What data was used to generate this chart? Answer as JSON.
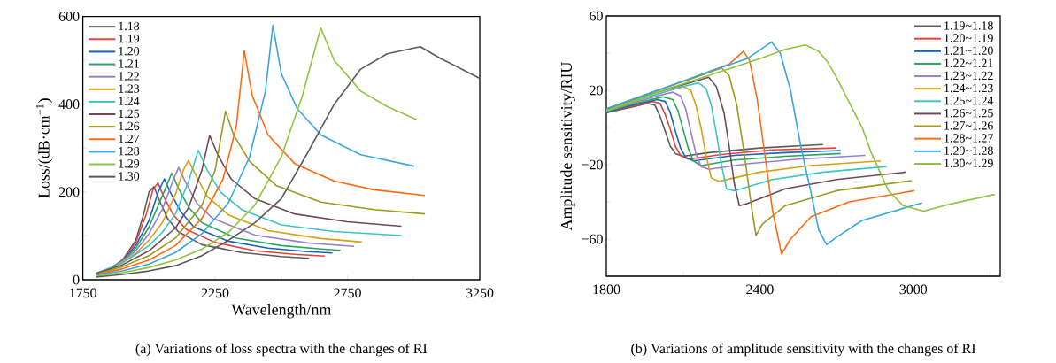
{
  "chart_data": [
    {
      "type": "line",
      "xlabel": "Wavelength/nm",
      "ylabel": "Loss/(dB·cm$^{−1}$)",
      "legend": "top left",
      "xlim": [
        1750,
        3250
      ],
      "xticks": [
        1750,
        {
          "value": 2000,
          "label": null
        },
        2250,
        {
          "value": 2500,
          "label": null
        },
        2750,
        {
          "value": 3000,
          "label": null
        },
        3250
      ],
      "ylim": [
        0,
        600
      ],
      "yticks": [
        0,
        {
          "value": 100,
          "label": null
        },
        200,
        {
          "value": 300,
          "label": null
        },
        400,
        {
          "value": 500,
          "label": null
        },
        600
      ],
      "annotations": [
        "(a) Variations of loss spectra with the changes of RI"
      ],
      "series": [
        {
          "name": "1.18",
          "color": "#5a5a5a",
          "x": [
            1800,
            1850,
            1900,
            1950,
            1980,
            2000,
            2019,
            2040,
            2070,
            2110,
            2200,
            2350,
            2500,
            2605
          ],
          "values": [
            10,
            22,
            45,
            90,
            150,
            200,
            212,
            180,
            140,
            110,
            80,
            62,
            53,
            49
          ]
        },
        {
          "name": "1.19",
          "color": "#e8413a",
          "x": [
            1800,
            1850,
            1900,
            1950,
            1990,
            2015,
            2034,
            2055,
            2090,
            2140,
            2250,
            2400,
            2550,
            2664
          ],
          "values": [
            11,
            23,
            45,
            85,
            150,
            205,
            221,
            190,
            150,
            115,
            85,
            66,
            58,
            54
          ]
        },
        {
          "name": "1.20",
          "color": "#1466b8",
          "x": [
            1800,
            1850,
            1900,
            1950,
            2000,
            2035,
            2058,
            2080,
            2120,
            2170,
            2300,
            2450,
            2600,
            2693
          ],
          "values": [
            12,
            24,
            44,
            78,
            135,
            200,
            230,
            200,
            155,
            120,
            88,
            72,
            64,
            61
          ]
        },
        {
          "name": "1.21",
          "color": "#2aa660",
          "x": [
            1800,
            1850,
            1900,
            1950,
            2000,
            2060,
            2086,
            2110,
            2150,
            2200,
            2330,
            2500,
            2650,
            2724
          ],
          "values": [
            13,
            24,
            43,
            72,
            120,
            205,
            243,
            210,
            165,
            130,
            95,
            78,
            70,
            67
          ]
        },
        {
          "name": "1.22",
          "color": "#9b7ecb",
          "x": [
            1800,
            1850,
            1900,
            1950,
            2000,
            2050,
            2090,
            2112,
            2140,
            2180,
            2240,
            2400,
            2600,
            2775
          ],
          "values": [
            14,
            25,
            42,
            66,
            105,
            160,
            225,
            256,
            220,
            175,
            140,
            102,
            84,
            76
          ]
        },
        {
          "name": "1.23",
          "color": "#d9a015",
          "x": [
            1800,
            1850,
            1900,
            1950,
            2000,
            2050,
            2100,
            2130,
            2149,
            2180,
            2220,
            2300,
            2450,
            2650,
            2805
          ],
          "values": [
            14,
            24,
            40,
            60,
            90,
            130,
            195,
            250,
            272,
            235,
            190,
            148,
            112,
            94,
            86
          ]
        },
        {
          "name": "1.24",
          "color": "#3cc4c8",
          "x": [
            1800,
            1900,
            2000,
            2050,
            2100,
            2150,
            2186,
            2220,
            2270,
            2350,
            2500,
            2700,
            2954
          ],
          "values": [
            15,
            38,
            78,
            108,
            150,
            225,
            295,
            250,
            200,
            160,
            125,
            110,
            101
          ]
        },
        {
          "name": "1.25",
          "color": "#6e4a55",
          "x": [
            1800,
            1900,
            2000,
            2100,
            2150,
            2200,
            2229,
            2260,
            2310,
            2400,
            2550,
            2750,
            2954
          ],
          "values": [
            14,
            34,
            66,
            118,
            165,
            250,
            329,
            285,
            230,
            185,
            150,
            132,
            122
          ]
        },
        {
          "name": "1.26",
          "color": "#9a9a22",
          "x": [
            1800,
            1900,
            2000,
            2100,
            2200,
            2250,
            2289,
            2320,
            2380,
            2480,
            2650,
            2850,
            3043
          ],
          "values": [
            12,
            30,
            55,
            95,
            170,
            250,
            384,
            330,
            270,
            215,
            177,
            160,
            150
          ]
        },
        {
          "name": "1.27",
          "color": "#ff6a10",
          "x": [
            1800,
            1900,
            2000,
            2100,
            2200,
            2280,
            2330,
            2360,
            2390,
            2450,
            2550,
            2700,
            2850,
            3043
          ],
          "values": [
            11,
            25,
            45,
            78,
            140,
            230,
            350,
            522,
            420,
            330,
            265,
            225,
            205,
            192
          ]
        },
        {
          "name": "1.28",
          "color": "#3ba5e0",
          "x": [
            1800,
            1900,
            2000,
            2100,
            2200,
            2300,
            2380,
            2440,
            2468,
            2500,
            2560,
            2650,
            2800,
            3002
          ],
          "values": [
            10,
            20,
            36,
            62,
            105,
            175,
            280,
            430,
            580,
            470,
            390,
            330,
            285,
            259
          ]
        },
        {
          "name": "1.29",
          "color": "#8cc63f",
          "x": [
            1800,
            1900,
            2000,
            2100,
            2200,
            2300,
            2400,
            2500,
            2580,
            2649,
            2700,
            2800,
            2900,
            3011
          ],
          "values": [
            8,
            16,
            28,
            45,
            70,
            108,
            170,
            280,
            420,
            574,
            500,
            430,
            395,
            365
          ]
        },
        {
          "name": "1.30",
          "color": "#5a5a5a",
          "x": [
            1800,
            1900,
            2000,
            2100,
            2200,
            2300,
            2400,
            2500,
            2600,
            2700,
            2800,
            2900,
            3025,
            3100,
            3250
          ],
          "values": [
            6,
            12,
            20,
            32,
            55,
            90,
            130,
            185,
            290,
            400,
            480,
            515,
            531,
            505,
            459
          ]
        }
      ]
    },
    {
      "type": "line",
      "ylabel": "Amplitude sensitivity/RIU",
      "legend": "top right",
      "xlim": [
        1800,
        3340
      ],
      "xticks": [
        1800,
        {
          "value": 2100,
          "label": null
        },
        2400,
        {
          "value": 2700,
          "label": null
        },
        3000,
        {
          "value": 3300,
          "label": null
        }
      ],
      "ylim": [
        -80,
        60
      ],
      "yticks": [
        {
          "value": -60,
          "label": "−60"
        },
        {
          "value": -40,
          "label": null
        },
        {
          "value": -20,
          "label": "−20"
        },
        {
          "value": 0,
          "label": null
        },
        20,
        {
          "value": 40,
          "label": null
        },
        60
      ],
      "annotations": [
        "(b) Variations of amplitude sensitivity with the changes of RI"
      ],
      "series": [
        {
          "name": "1.19~1.18",
          "color": "#5a5a5a",
          "x": [
            1800,
            1900,
            1960,
            1990,
            2010,
            2030,
            2050,
            2070,
            2100,
            2200,
            2400,
            2647
          ],
          "values": [
            8,
            11,
            13,
            12,
            6,
            -2,
            -10,
            -14,
            -15.5,
            -13.5,
            -11,
            -9.2
          ]
        },
        {
          "name": "1.20~1.19",
          "color": "#e8413a",
          "x": [
            1800,
            1900,
            1980,
            2010,
            2030,
            2050,
            2070,
            2090,
            2120,
            2250,
            2450,
            2698
          ],
          "values": [
            8,
            11.5,
            14,
            13,
            7,
            -1,
            -10,
            -15,
            -17,
            -14.5,
            -12,
            -11
          ]
        },
        {
          "name": "1.21~1.20",
          "color": "#1466b8",
          "x": [
            1800,
            1900,
            2000,
            2030,
            2050,
            2070,
            2090,
            2110,
            2140,
            2300,
            2500,
            2716
          ],
          "values": [
            8,
            12,
            15,
            14,
            8,
            -2,
            -11,
            -16,
            -18,
            -15,
            -13.5,
            -12.4
          ]
        },
        {
          "name": "1.22~1.21",
          "color": "#2aa660",
          "x": [
            1800,
            1900,
            2020,
            2060,
            2080,
            2100,
            2120,
            2140,
            2170,
            2300,
            2500,
            2716
          ],
          "values": [
            8.5,
            12.5,
            16.5,
            15,
            9,
            -1,
            -11,
            -18,
            -20.5,
            -17.5,
            -15.5,
            -14
          ]
        },
        {
          "name": "1.23~1.22",
          "color": "#9b7ecb",
          "x": [
            1800,
            1900,
            2000,
            2060,
            2090,
            2110,
            2130,
            2150,
            2170,
            2200,
            2350,
            2550,
            2813
          ],
          "values": [
            9,
            13,
            17,
            19,
            17,
            10,
            -2,
            -14,
            -21,
            -22.5,
            -19.5,
            -17,
            -15
          ]
        },
        {
          "name": "1.24~1.23",
          "color": "#d9a015",
          "x": [
            1800,
            1900,
            2000,
            2100,
            2130,
            2150,
            2170,
            2190,
            2210,
            2240,
            2400,
            2600,
            2873
          ],
          "values": [
            9,
            13.5,
            18,
            22,
            20,
            12,
            0,
            -15,
            -27,
            -29,
            -24,
            -20.5,
            -18
          ]
        },
        {
          "name": "1.25~1.24",
          "color": "#3cc4c8",
          "x": [
            1800,
            1950,
            2100,
            2160,
            2190,
            2210,
            2230,
            2250,
            2270,
            2300,
            2450,
            2650,
            2896
          ],
          "values": [
            9.5,
            16,
            22,
            24,
            21,
            12,
            -3,
            -20,
            -33,
            -34,
            -28,
            -24,
            -21
          ]
        },
        {
          "name": "1.26~1.25",
          "color": "#6e4a55",
          "x": [
            1800,
            1950,
            2100,
            2200,
            2230,
            2260,
            2280,
            2300,
            2320,
            2350,
            2500,
            2700,
            2972
          ],
          "values": [
            10,
            17,
            23,
            27,
            22,
            8,
            -10,
            -30,
            -42,
            -41,
            -33,
            -28,
            -24
          ]
        },
        {
          "name": "1.27~1.26",
          "color": "#9a9a22",
          "x": [
            1800,
            2000,
            2150,
            2250,
            2280,
            2310,
            2340,
            2370,
            2385,
            2410,
            2500,
            2700,
            2993
          ],
          "values": [
            10,
            20,
            27,
            32,
            28,
            12,
            -15,
            -45,
            -58,
            -52,
            -42,
            -34,
            -28.6
          ]
        },
        {
          "name": "1.28~1.27",
          "color": "#ff6a10",
          "x": [
            2200,
            2280,
            2336,
            2360,
            2390,
            2420,
            2450,
            2485,
            2520,
            2600,
            2750,
            3004
          ],
          "values": [
            30,
            34,
            41,
            36,
            15,
            -15,
            -45,
            -68,
            -60,
            -48,
            -40,
            -34
          ]
        },
        {
          "name": "1.29~1.28",
          "color": "#3ba5e0",
          "x": [
            1800,
            2000,
            2200,
            2350,
            2446,
            2480,
            2520,
            2560,
            2600,
            2630,
            2661,
            2700,
            2800,
            3035
          ],
          "values": [
            10,
            20,
            30,
            37,
            46,
            40,
            20,
            -10,
            -35,
            -55,
            -63,
            -59,
            -50,
            -40.5
          ]
        },
        {
          "name": "1.30~1.29",
          "color": "#8cc63f",
          "x": [
            1800,
            2000,
            2200,
            2400,
            2500,
            2578,
            2630,
            2661,
            2700,
            2751,
            2800,
            2834,
            2903,
            2960,
            3041,
            3150,
            3318
          ],
          "values": [
            9,
            19,
            28,
            37,
            42,
            44.4,
            41,
            36,
            27,
            13,
            0,
            -13,
            -34,
            -42,
            -45,
            -41,
            -36
          ]
        }
      ]
    }
  ]
}
